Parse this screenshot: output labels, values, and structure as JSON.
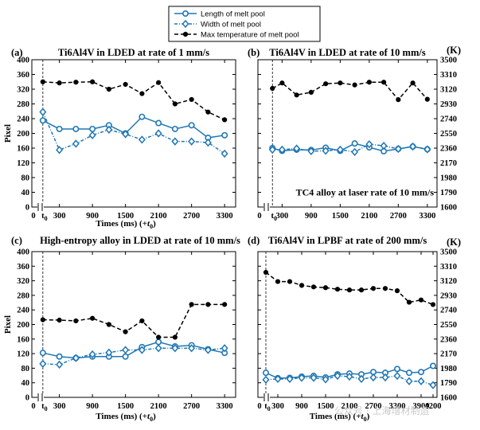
{
  "colors": {
    "blue": "#1f77b4",
    "black": "#000000"
  },
  "legend": {
    "items": [
      {
        "label": "Length of melt pool",
        "style": "solid-circle"
      },
      {
        "label": "Width of melt pool",
        "style": "dashdot-diamond"
      },
      {
        "label": "Max temperature of melt pool",
        "style": "dashed-circle"
      }
    ]
  },
  "watermark": {
    "text": "公众号 · 上海增材制造"
  },
  "chart_data": [
    {
      "id": "a",
      "panel_label": "(a)",
      "type": "line",
      "title": "Ti6Al4V in LDED at rate of 1 mm/s",
      "ylabel": "Pixel",
      "xlabel": "Times (ms) (+t0)",
      "ylim": [
        0,
        400
      ],
      "left_ticks": [
        "0",
        "40",
        "80",
        "120",
        "160",
        "200",
        "240",
        "280",
        "320",
        "360",
        "400"
      ],
      "x_tick_labels": [
        "0",
        "t0",
        "300",
        "900",
        "1500",
        "2100",
        "2700",
        "3300"
      ],
      "xlim": [
        -200,
        3500
      ],
      "series": [
        {
          "name": "Length of melt pool",
          "x": [
            0,
            300,
            600,
            900,
            1200,
            1500,
            1800,
            2100,
            2400,
            2700,
            3000,
            3300
          ],
          "values": [
            235,
            212,
            212,
            212,
            222,
            200,
            245,
            228,
            212,
            222,
            188,
            195
          ]
        },
        {
          "name": "Width of melt pool",
          "x": [
            0,
            300,
            600,
            900,
            1200,
            1500,
            1800,
            2100,
            2400,
            2700,
            3000,
            3300
          ],
          "values": [
            258,
            155,
            172,
            195,
            210,
            198,
            183,
            200,
            178,
            178,
            175,
            145
          ]
        },
        {
          "name": "Max temperature of melt pool",
          "x": [
            0,
            300,
            600,
            900,
            1200,
            1500,
            1800,
            2100,
            2400,
            2700,
            3000,
            3300
          ],
          "values": [
            340,
            337,
            339,
            340,
            320,
            333,
            308,
            338,
            280,
            292,
            258,
            237
          ],
          "axis": "left"
        }
      ]
    },
    {
      "id": "b",
      "panel_label": "(b)",
      "type": "line",
      "title": "Ti6Al4V in LDED at rate of 10 mm/s",
      "right_unit": "(K)",
      "annotation": "TC4 alloy at laser rate of 10 mm/s",
      "right_ylim": [
        1600,
        3500
      ],
      "right_ticks": [
        "1600",
        "1790",
        "1980",
        "2170",
        "2360",
        "2550",
        "2740",
        "2930",
        "3120",
        "3310",
        "3500"
      ],
      "ylim": [
        0,
        400
      ],
      "x_tick_labels": [
        "0",
        "t0",
        "300",
        "900",
        "1500",
        "2100",
        "2700",
        "3300"
      ],
      "xlim": [
        -200,
        3500
      ],
      "series": [
        {
          "name": "Length of melt pool",
          "x": [
            100,
            300,
            600,
            900,
            1200,
            1500,
            1800,
            2100,
            2400,
            2700,
            3000,
            3300
          ],
          "values": [
            2360,
            2325,
            2340,
            2335,
            2365,
            2325,
            2420,
            2370,
            2320,
            2350,
            2380,
            2345
          ]
        },
        {
          "name": "Width of melt pool",
          "x": [
            100,
            300,
            600,
            900,
            1200,
            1500,
            1800,
            2100,
            2400,
            2700,
            3000,
            3300
          ],
          "values": [
            2340,
            2340,
            2355,
            2320,
            2325,
            2340,
            2310,
            2410,
            2390,
            2350,
            2380,
            2345
          ]
        },
        {
          "name": "Max temperature of melt pool",
          "x": [
            100,
            300,
            600,
            900,
            1200,
            1500,
            1800,
            2100,
            2400,
            2700,
            3000,
            3300
          ],
          "values": [
            3130,
            3200,
            3045,
            3080,
            3190,
            3200,
            3175,
            3210,
            3210,
            2985,
            3200,
            2990
          ]
        }
      ]
    },
    {
      "id": "c",
      "panel_label": "(c)",
      "type": "line",
      "title": "High-entropy alloy in LDED at rate of 10 mm/s",
      "ylabel": "Pixel",
      "xlabel": "Times (ms) (+t0)",
      "ylim": [
        0,
        400
      ],
      "left_ticks": [
        "0",
        "40",
        "80",
        "120",
        "160",
        "200",
        "240",
        "280",
        "320",
        "360",
        "400"
      ],
      "x_tick_labels": [
        "0",
        "t0",
        "300",
        "900",
        "1500",
        "2100",
        "2700",
        "3300"
      ],
      "xlim": [
        -200,
        3500
      ],
      "series": [
        {
          "name": "Length of melt pool",
          "x": [
            0,
            300,
            600,
            900,
            1200,
            1500,
            1800,
            2100,
            2400,
            2700,
            3000,
            3300
          ],
          "values": [
            122,
            112,
            108,
            112,
            112,
            112,
            138,
            152,
            140,
            143,
            132,
            122
          ]
        },
        {
          "name": "Width of melt pool",
          "x": [
            0,
            300,
            600,
            900,
            1200,
            1500,
            1800,
            2100,
            2400,
            2700,
            3000,
            3300
          ],
          "values": [
            92,
            90,
            108,
            118,
            123,
            130,
            130,
            135,
            135,
            135,
            130,
            135
          ]
        },
        {
          "name": "Max temperature of melt pool",
          "x": [
            0,
            300,
            600,
            900,
            1200,
            1500,
            1800,
            2100,
            2400,
            2700,
            3000,
            3300
          ],
          "values": [
            213,
            212,
            210,
            217,
            200,
            180,
            210,
            165,
            165,
            255,
            255,
            255
          ],
          "axis": "left"
        }
      ]
    },
    {
      "id": "d",
      "panel_label": "(d)",
      "type": "line",
      "title": "Ti6Al4V in LPBF at rate of 200 mm/s",
      "right_unit": "(K)",
      "right_ylim": [
        1600,
        3500
      ],
      "right_ticks": [
        "1600",
        "1790",
        "1980",
        "2170",
        "2360",
        "2550",
        "2740",
        "2930",
        "3120",
        "3310",
        "3500"
      ],
      "xlabel": "Times (ms) (+t0)",
      "x_tick_labels": [
        "0",
        "t0",
        "300",
        "900",
        "1500",
        "2100",
        "2700",
        "3300",
        "3900",
        "4200"
      ],
      "xlim": [
        -200,
        4300
      ],
      "series": [
        {
          "name": "Length of melt pool",
          "x": [
            0,
            300,
            600,
            900,
            1200,
            1500,
            1800,
            2100,
            2400,
            2700,
            3000,
            3300,
            3600,
            3900,
            4200
          ],
          "values": [
            1920,
            1850,
            1855,
            1870,
            1880,
            1860,
            1900,
            1910,
            1900,
            1930,
            1920,
            1970,
            1920,
            1930,
            2010
          ]
        },
        {
          "name": "Width of melt pool",
          "x": [
            0,
            300,
            600,
            900,
            1200,
            1500,
            1800,
            2100,
            2400,
            2700,
            3000,
            3300,
            3600,
            3900,
            4200
          ],
          "values": [
            1830,
            1840,
            1840,
            1855,
            1855,
            1835,
            1880,
            1870,
            1840,
            1860,
            1860,
            1880,
            1810,
            1810,
            1760
          ]
        },
        {
          "name": "Max temperature of melt pool",
          "x": [
            0,
            300,
            600,
            900,
            1200,
            1500,
            1800,
            2100,
            2400,
            2700,
            3000,
            3300,
            3600,
            3900,
            4200
          ],
          "values": [
            3230,
            3110,
            3110,
            3060,
            3040,
            3030,
            3010,
            3000,
            3000,
            3020,
            3020,
            2990,
            2840,
            2870,
            2810
          ]
        }
      ]
    }
  ]
}
